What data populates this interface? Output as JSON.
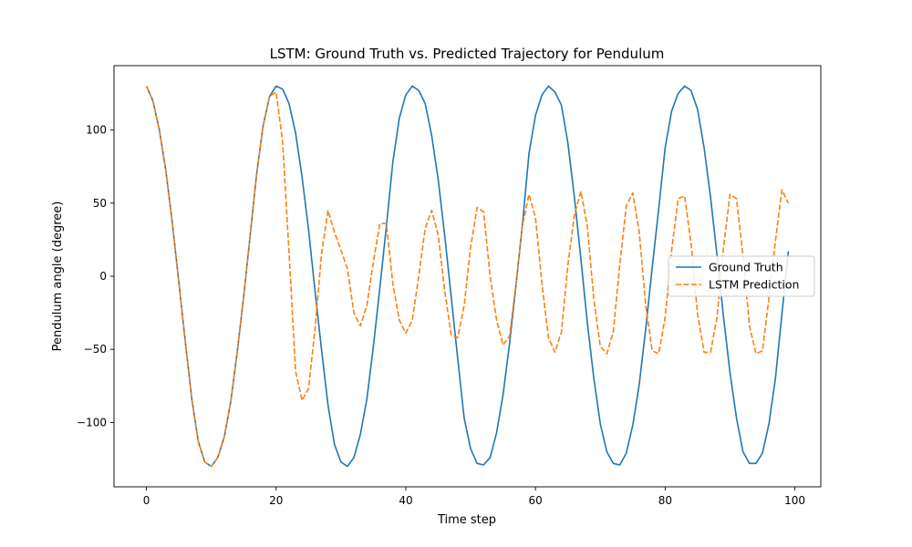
{
  "chart_data": {
    "type": "line",
    "title": "LSTM: Ground Truth vs. Predicted Trajectory for Pendulum",
    "xlabel": "Time step",
    "ylabel": "Pendulum angle (degree)",
    "xlim": [
      -5,
      104
    ],
    "ylim": [
      -144,
      144
    ],
    "xticks": [
      0,
      20,
      40,
      60,
      80,
      100
    ],
    "yticks": [
      -100,
      -50,
      0,
      50,
      100
    ],
    "grid": false,
    "legend_position": "center-right",
    "x_start": 0,
    "x_step": 1,
    "series": [
      {
        "name": "Ground Truth",
        "color": "#1f77b4",
        "dash": "solid",
        "values": [
          130,
          120,
          100,
          72,
          36,
          -4,
          -45,
          -84,
          -113,
          -127,
          -130,
          -124,
          -110,
          -86,
          -52,
          -14,
          28,
          70,
          103,
          123,
          130,
          128,
          118,
          98,
          68,
          32,
          -10,
          -50,
          -88,
          -115,
          -127,
          -130,
          -124,
          -108,
          -84,
          -48,
          -8,
          34,
          78,
          108,
          124,
          130,
          127,
          118,
          96,
          66,
          28,
          -14,
          -56,
          -97,
          -118,
          -128,
          -129,
          -124,
          -107,
          -81,
          -46,
          -6,
          36,
          84,
          110,
          124,
          130,
          126,
          117,
          91,
          54,
          12,
          -32,
          -70,
          -101,
          -120,
          -128,
          -129,
          -121,
          -102,
          -74,
          -36,
          6,
          46,
          88,
          113,
          125,
          130,
          127,
          114,
          88,
          54,
          14,
          -28,
          -66,
          -97,
          -120,
          -128,
          -128,
          -121,
          -101,
          -70,
          -26,
          17
        ]
      },
      {
        "name": "LSTM Prediction",
        "color": "#ff7f0e",
        "dash": "dashed",
        "values": [
          130,
          120,
          100,
          72,
          36,
          -4,
          -45,
          -84,
          -113,
          -127,
          -130,
          -124,
          -110,
          -86,
          -52,
          -14,
          28,
          70,
          103,
          123,
          126,
          92,
          16,
          -65,
          -85,
          -77,
          -36,
          15,
          45,
          30,
          18,
          5,
          -25,
          -34,
          -20,
          10,
          36,
          36,
          -5,
          -30,
          -39,
          -30,
          0,
          33,
          45,
          28,
          -10,
          -40,
          -42,
          -20,
          20,
          47,
          44,
          0,
          -30,
          -47,
          -41,
          -5,
          35,
          56,
          40,
          -5,
          -42,
          -52,
          -38,
          8,
          42,
          58,
          34,
          -16,
          -48,
          -53,
          -38,
          8,
          48,
          57,
          30,
          -20,
          -51,
          -53,
          -28,
          18,
          53,
          55,
          22,
          -26,
          -52,
          -52,
          -28,
          20,
          56,
          53,
          14,
          -34,
          -53,
          -51,
          -15,
          24,
          59,
          50
        ]
      }
    ]
  }
}
